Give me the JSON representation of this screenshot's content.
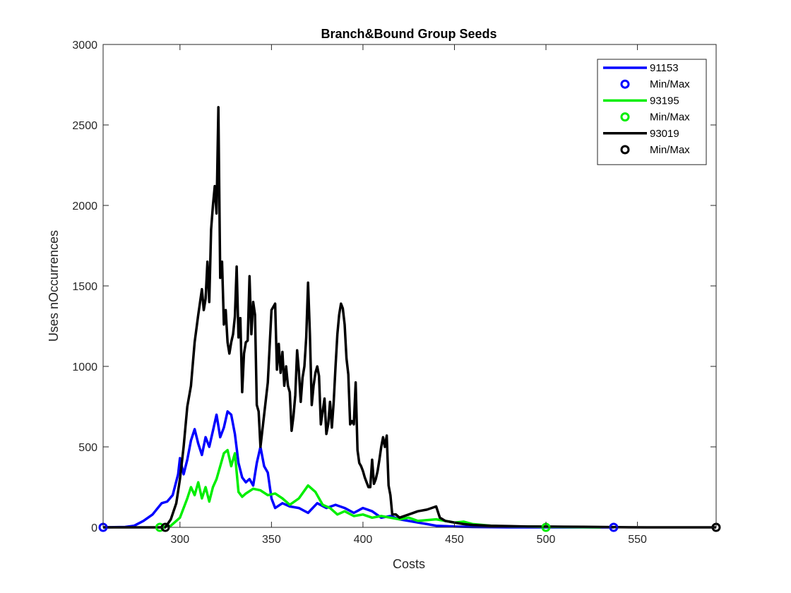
{
  "chart_data": {
    "type": "line",
    "title": "Branch&Bound Group Seeds",
    "xlabel": "Costs",
    "ylabel": "Uses nOccurrences",
    "xlim": [
      258,
      593
    ],
    "ylim": [
      0,
      3000
    ],
    "xticks": [
      300,
      350,
      400,
      450,
      500,
      550
    ],
    "yticks": [
      0,
      500,
      1000,
      1500,
      2000,
      2500,
      3000
    ],
    "grid": false,
    "legend_position": "top-right",
    "series": [
      {
        "name": "91153",
        "color": "#0000ff",
        "points": [
          [
            258,
            0
          ],
          [
            270,
            2
          ],
          [
            275,
            10
          ],
          [
            280,
            40
          ],
          [
            285,
            80
          ],
          [
            290,
            150
          ],
          [
            293,
            160
          ],
          [
            296,
            200
          ],
          [
            299,
            330
          ],
          [
            300,
            430
          ],
          [
            302,
            330
          ],
          [
            304,
            420
          ],
          [
            306,
            540
          ],
          [
            308,
            610
          ],
          [
            310,
            520
          ],
          [
            312,
            450
          ],
          [
            314,
            560
          ],
          [
            316,
            500
          ],
          [
            318,
            600
          ],
          [
            320,
            700
          ],
          [
            322,
            560
          ],
          [
            324,
            620
          ],
          [
            326,
            720
          ],
          [
            328,
            700
          ],
          [
            330,
            580
          ],
          [
            332,
            400
          ],
          [
            334,
            310
          ],
          [
            336,
            280
          ],
          [
            338,
            300
          ],
          [
            340,
            260
          ],
          [
            342,
            400
          ],
          [
            344,
            500
          ],
          [
            346,
            380
          ],
          [
            348,
            340
          ],
          [
            350,
            180
          ],
          [
            352,
            120
          ],
          [
            356,
            150
          ],
          [
            360,
            130
          ],
          [
            365,
            120
          ],
          [
            370,
            90
          ],
          [
            375,
            150
          ],
          [
            380,
            120
          ],
          [
            385,
            140
          ],
          [
            390,
            120
          ],
          [
            395,
            90
          ],
          [
            400,
            120
          ],
          [
            405,
            100
          ],
          [
            410,
            60
          ],
          [
            415,
            70
          ],
          [
            420,
            50
          ],
          [
            425,
            40
          ],
          [
            430,
            30
          ],
          [
            435,
            20
          ],
          [
            440,
            10
          ],
          [
            450,
            5
          ],
          [
            460,
            2
          ],
          [
            480,
            0
          ],
          [
            500,
            0
          ],
          [
            537,
            0
          ]
        ],
        "minmax": [
          [
            258,
            0
          ],
          [
            537,
            0
          ]
        ]
      },
      {
        "name": "93195",
        "color": "#00ee00",
        "points": [
          [
            289,
            0
          ],
          [
            295,
            10
          ],
          [
            300,
            60
          ],
          [
            302,
            120
          ],
          [
            304,
            180
          ],
          [
            306,
            250
          ],
          [
            308,
            200
          ],
          [
            310,
            280
          ],
          [
            312,
            180
          ],
          [
            314,
            250
          ],
          [
            316,
            160
          ],
          [
            318,
            250
          ],
          [
            320,
            300
          ],
          [
            322,
            380
          ],
          [
            324,
            460
          ],
          [
            326,
            480
          ],
          [
            328,
            380
          ],
          [
            330,
            460
          ],
          [
            332,
            220
          ],
          [
            334,
            190
          ],
          [
            336,
            210
          ],
          [
            340,
            240
          ],
          [
            344,
            230
          ],
          [
            348,
            200
          ],
          [
            352,
            210
          ],
          [
            356,
            180
          ],
          [
            360,
            140
          ],
          [
            365,
            180
          ],
          [
            370,
            260
          ],
          [
            374,
            220
          ],
          [
            378,
            140
          ],
          [
            382,
            120
          ],
          [
            386,
            80
          ],
          [
            390,
            100
          ],
          [
            395,
            70
          ],
          [
            400,
            80
          ],
          [
            405,
            60
          ],
          [
            410,
            70
          ],
          [
            415,
            60
          ],
          [
            420,
            50
          ],
          [
            425,
            60
          ],
          [
            430,
            40
          ],
          [
            435,
            45
          ],
          [
            440,
            50
          ],
          [
            445,
            40
          ],
          [
            450,
            30
          ],
          [
            455,
            35
          ],
          [
            460,
            20
          ],
          [
            470,
            10
          ],
          [
            480,
            5
          ],
          [
            490,
            5
          ],
          [
            500,
            3
          ],
          [
            510,
            2
          ],
          [
            520,
            1
          ],
          [
            530,
            0
          ]
        ],
        "minmax": [
          [
            289,
            0
          ],
          [
            500,
            0
          ]
        ]
      },
      {
        "name": "93019",
        "color": "#000000",
        "points": [
          [
            258,
            0
          ],
          [
            292,
            0
          ],
          [
            295,
            50
          ],
          [
            298,
            150
          ],
          [
            300,
            300
          ],
          [
            302,
            500
          ],
          [
            304,
            750
          ],
          [
            306,
            880
          ],
          [
            308,
            1150
          ],
          [
            310,
            1320
          ],
          [
            312,
            1480
          ],
          [
            313,
            1350
          ],
          [
            314,
            1420
          ],
          [
            315,
            1650
          ],
          [
            316,
            1400
          ],
          [
            317,
            1850
          ],
          [
            318,
            2000
          ],
          [
            319,
            2120
          ],
          [
            320,
            1950
          ],
          [
            321,
            2610
          ],
          [
            322,
            1550
          ],
          [
            323,
            1650
          ],
          [
            324,
            1260
          ],
          [
            325,
            1350
          ],
          [
            326,
            1150
          ],
          [
            327,
            1080
          ],
          [
            328,
            1150
          ],
          [
            329,
            1200
          ],
          [
            330,
            1310
          ],
          [
            331,
            1620
          ],
          [
            332,
            1180
          ],
          [
            333,
            1300
          ],
          [
            334,
            840
          ],
          [
            335,
            1080
          ],
          [
            336,
            1150
          ],
          [
            337,
            1160
          ],
          [
            338,
            1560
          ],
          [
            339,
            1200
          ],
          [
            340,
            1400
          ],
          [
            341,
            1320
          ],
          [
            342,
            760
          ],
          [
            343,
            720
          ],
          [
            344,
            500
          ],
          [
            346,
            700
          ],
          [
            348,
            900
          ],
          [
            350,
            1350
          ],
          [
            352,
            1390
          ],
          [
            353,
            980
          ],
          [
            354,
            1140
          ],
          [
            355,
            960
          ],
          [
            356,
            1090
          ],
          [
            357,
            880
          ],
          [
            358,
            1000
          ],
          [
            359,
            880
          ],
          [
            360,
            840
          ],
          [
            361,
            600
          ],
          [
            362,
            690
          ],
          [
            363,
            820
          ],
          [
            364,
            1100
          ],
          [
            365,
            970
          ],
          [
            366,
            780
          ],
          [
            367,
            930
          ],
          [
            368,
            1000
          ],
          [
            369,
            1180
          ],
          [
            370,
            1520
          ],
          [
            371,
            1200
          ],
          [
            372,
            760
          ],
          [
            373,
            880
          ],
          [
            374,
            960
          ],
          [
            375,
            1000
          ],
          [
            376,
            940
          ],
          [
            377,
            640
          ],
          [
            378,
            720
          ],
          [
            379,
            800
          ],
          [
            380,
            580
          ],
          [
            381,
            640
          ],
          [
            382,
            780
          ],
          [
            383,
            620
          ],
          [
            384,
            780
          ],
          [
            385,
            1000
          ],
          [
            386,
            1200
          ],
          [
            387,
            1320
          ],
          [
            388,
            1390
          ],
          [
            389,
            1360
          ],
          [
            390,
            1260
          ],
          [
            391,
            1050
          ],
          [
            392,
            950
          ],
          [
            393,
            640
          ],
          [
            394,
            660
          ],
          [
            395,
            640
          ],
          [
            396,
            900
          ],
          [
            397,
            480
          ],
          [
            398,
            400
          ],
          [
            399,
            380
          ],
          [
            400,
            350
          ],
          [
            401,
            310
          ],
          [
            402,
            280
          ],
          [
            403,
            250
          ],
          [
            404,
            250
          ],
          [
            405,
            420
          ],
          [
            406,
            270
          ],
          [
            407,
            300
          ],
          [
            408,
            350
          ],
          [
            409,
            420
          ],
          [
            410,
            500
          ],
          [
            411,
            560
          ],
          [
            412,
            500
          ],
          [
            413,
            570
          ],
          [
            414,
            260
          ],
          [
            415,
            200
          ],
          [
            416,
            80
          ],
          [
            418,
            80
          ],
          [
            420,
            60
          ],
          [
            425,
            80
          ],
          [
            430,
            100
          ],
          [
            435,
            110
          ],
          [
            440,
            130
          ],
          [
            442,
            60
          ],
          [
            445,
            40
          ],
          [
            450,
            30
          ],
          [
            455,
            20
          ],
          [
            460,
            15
          ],
          [
            470,
            10
          ],
          [
            480,
            8
          ],
          [
            490,
            5
          ],
          [
            500,
            5
          ],
          [
            510,
            4
          ],
          [
            520,
            3
          ],
          [
            530,
            2
          ],
          [
            540,
            1
          ],
          [
            555,
            0
          ],
          [
            593,
            0
          ]
        ],
        "minmax": [
          [
            292,
            0
          ],
          [
            593,
            0
          ]
        ]
      }
    ],
    "legend_entries": [
      {
        "label": "91153",
        "kind": "line",
        "color": "#0000ff"
      },
      {
        "label": "Min/Max",
        "kind": "marker",
        "color": "#0000ff"
      },
      {
        "label": "93195",
        "kind": "line",
        "color": "#00ee00"
      },
      {
        "label": "Min/Max",
        "kind": "marker",
        "color": "#00ee00"
      },
      {
        "label": "93019",
        "kind": "line",
        "color": "#000000"
      },
      {
        "label": "Min/Max",
        "kind": "marker",
        "color": "#000000"
      }
    ]
  }
}
